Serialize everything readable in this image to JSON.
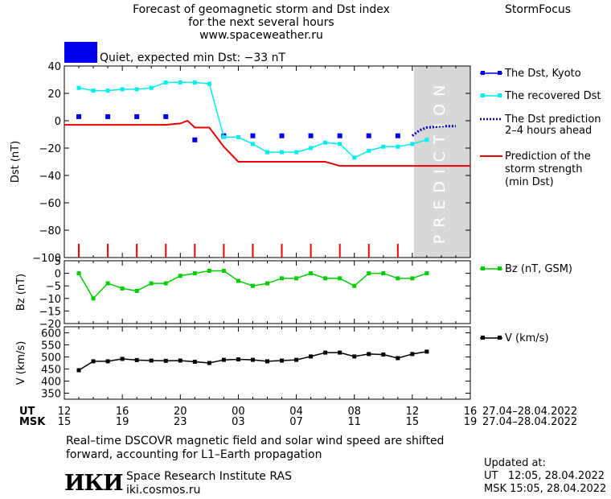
{
  "header": {
    "title_lines": [
      "Forecast of geomagnetic storm and Dst index",
      "for the next several hours",
      "www.spaceweather.ru"
    ],
    "brand": "StormFocus",
    "status_color": "#0000ee",
    "status_text": "Quiet, expected min Dst: −33 nT"
  },
  "legend": {
    "dst_kyoto": "The Dst, Kyoto",
    "dst_recovered": "The recovered Dst",
    "dst_prediction_1": "The Dst prediction",
    "dst_prediction_2": "2–4 hours ahead",
    "storm_1": "Prediction of the",
    "storm_2": "storm strength",
    "storm_3": "(min Dst)",
    "bz": "Bz (nT, GSM)",
    "v": "V (km/s)"
  },
  "prediction_band_text": "PREDICTION",
  "time_axis": {
    "ut_label": "UT",
    "msk_label": "MSK",
    "ut_ticks": [
      "12",
      "16",
      "20",
      "00",
      "04",
      "08",
      "12",
      "16"
    ],
    "msk_ticks": [
      "15",
      "19",
      "23",
      "03",
      "07",
      "11",
      "15",
      "19"
    ],
    "ut_range": "27.04–28.04.2022",
    "msk_range": "27.04–28.04.2022"
  },
  "footer": {
    "note_1": "Real–time DSCOVR magnetic field and solar wind speed are shifted",
    "note_2": "forward, accounting for L1–Earth propagation",
    "logo": "ИКИ",
    "institute": "Space Research Institute RAS",
    "url": "iki.cosmos.ru",
    "updated_label": "Updated at:",
    "updated_ut": "UT   12:05, 28.04.2022",
    "updated_msk": "MSK 15:05, 28.04.2022"
  },
  "chart_data": [
    {
      "type": "line",
      "ylabel": "Dst (nT)",
      "ylim": [
        -100,
        40
      ],
      "yticks": [
        40,
        20,
        0,
        -20,
        -40,
        -60,
        -80,
        -100
      ],
      "xlim_hours": [
        12,
        40
      ],
      "prediction_region_start": 36,
      "series": [
        {
          "name": "The Dst, Kyoto",
          "color": "#0000ee",
          "style": "squares",
          "x": [
            13,
            15,
            17,
            19,
            21,
            23,
            25,
            27,
            29,
            31,
            33,
            35
          ],
          "y": [
            3,
            3,
            3,
            3,
            -14,
            -11,
            -11,
            -11,
            -11,
            -11,
            -11,
            -11
          ]
        },
        {
          "name": "The recovered Dst",
          "color": "#00eeee",
          "style": "line-squares",
          "x": [
            13,
            14,
            15,
            16,
            17,
            18,
            19,
            20,
            21,
            22,
            23,
            24,
            25,
            26,
            27,
            28,
            29,
            30,
            31,
            32,
            33,
            34,
            35,
            36,
            37
          ],
          "y": [
            24,
            22,
            22,
            23,
            23,
            24,
            28,
            28,
            28,
            27,
            -12,
            -12,
            -17,
            -23,
            -23,
            -23,
            -20,
            -16,
            -17,
            -27,
            -22,
            -19,
            -19,
            -17,
            -14
          ]
        },
        {
          "name": "The Dst prediction 2–4 hours ahead",
          "color": "#0000bb",
          "style": "dotted",
          "x": [
            36,
            36.5,
            37,
            38,
            39
          ],
          "y": [
            -11,
            -7,
            -5,
            -4,
            -4
          ]
        },
        {
          "name": "Prediction of the storm strength (min Dst)",
          "color": "#ee0000",
          "style": "line",
          "x": [
            12,
            19,
            20,
            20.5,
            21,
            22,
            23,
            24,
            30,
            31,
            40
          ],
          "y": [
            -3,
            -3,
            -2,
            0,
            -5,
            -5,
            -19,
            -30,
            -30,
            -33,
            -33
          ]
        }
      ]
    },
    {
      "type": "line",
      "ylabel": "Bz (nT)",
      "ylim": [
        -20,
        5
      ],
      "yticks": [
        5,
        0,
        -5,
        -10,
        -15,
        -20
      ],
      "series": [
        {
          "name": "Bz (nT, GSM)",
          "color": "#00cc00",
          "x": [
            13,
            14,
            15,
            16,
            17,
            18,
            19,
            20,
            21,
            22,
            23,
            24,
            25,
            26,
            27,
            28,
            29,
            30,
            31,
            32,
            33,
            34,
            35,
            36,
            37
          ],
          "y": [
            0,
            -10,
            -4,
            -6,
            -7,
            -4,
            -4,
            -1,
            0,
            1,
            1,
            -3,
            -5,
            -4,
            -2,
            -2,
            0,
            -2,
            -2,
            -5,
            0,
            0,
            -2,
            -2,
            0
          ]
        }
      ]
    },
    {
      "type": "line",
      "ylabel": "V (km/s)",
      "ylim": [
        325,
        625
      ],
      "yticks": [
        600,
        550,
        500,
        450,
        400,
        350
      ],
      "series": [
        {
          "name": "V (km/s)",
          "color": "#000000",
          "x": [
            13,
            14,
            15,
            16,
            17,
            18,
            19,
            20,
            21,
            22,
            23,
            24,
            25,
            26,
            27,
            28,
            29,
            30,
            31,
            32,
            33,
            34,
            35,
            36,
            37
          ],
          "y": [
            445,
            482,
            482,
            492,
            487,
            485,
            484,
            485,
            480,
            475,
            488,
            490,
            488,
            482,
            485,
            488,
            502,
            518,
            518,
            502,
            512,
            510,
            495,
            512,
            522
          ]
        }
      ]
    }
  ]
}
